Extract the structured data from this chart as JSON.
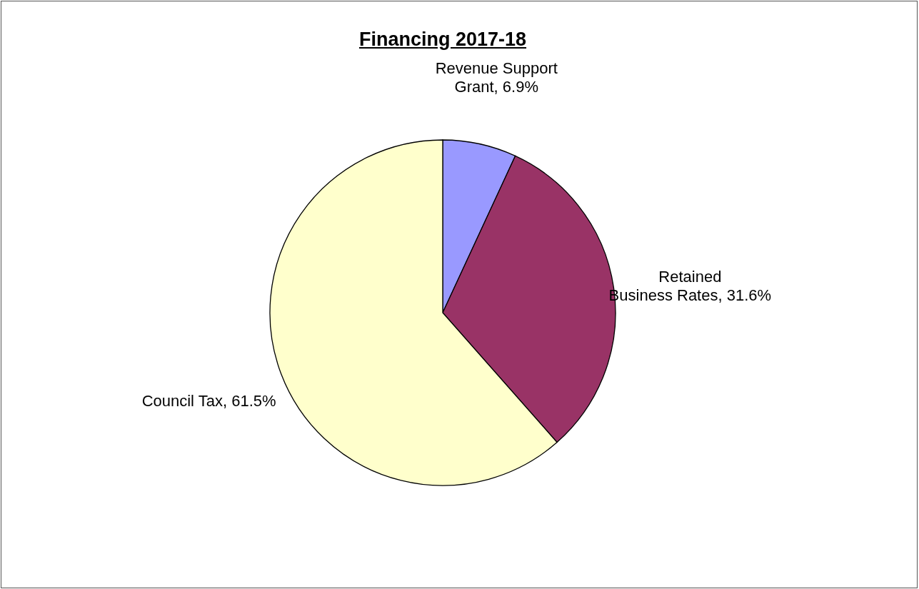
{
  "chart_data": {
    "type": "pie",
    "title": "Financing 2017-18",
    "categories": [
      "Revenue Support Grant",
      "Retained Business Rates",
      "Council Tax"
    ],
    "values": [
      6.9,
      31.6,
      61.5
    ],
    "value_labels": [
      "6.9%",
      "31.6%",
      "61.5%"
    ],
    "colors": [
      "#9999ff",
      "#993366",
      "#ffffcc"
    ]
  }
}
